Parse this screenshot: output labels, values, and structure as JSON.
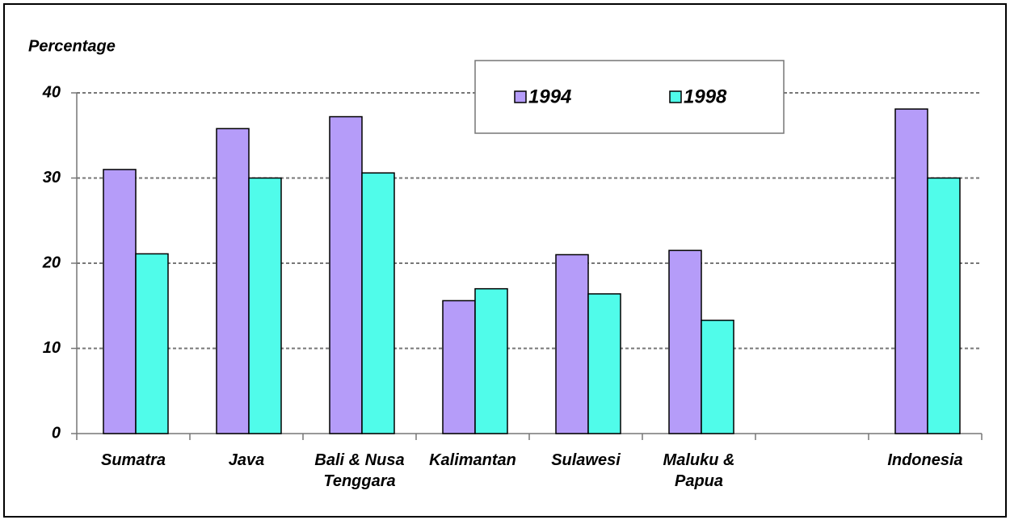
{
  "chart_data": {
    "type": "bar",
    "y_label": "Percentage",
    "categories": [
      "Sumatra",
      "Java",
      "Bali & Nusa Tenggara",
      "Kalimantan",
      "Sulawesi",
      "Maluku & Papua",
      null,
      "Indonesia"
    ],
    "series": [
      {
        "name": "1994",
        "color": "#b59cf9",
        "values": [
          31,
          35.8,
          37.2,
          15.6,
          21,
          21.5,
          null,
          38.1
        ]
      },
      {
        "name": "1998",
        "color": "#50fcea",
        "values": [
          21.1,
          30,
          30.6,
          17,
          16.4,
          13.3,
          null,
          30
        ]
      }
    ],
    "ylim": [
      0,
      40
    ],
    "yticks": [
      0,
      10,
      20,
      30,
      40
    ],
    "grid": true,
    "legend": "top"
  }
}
